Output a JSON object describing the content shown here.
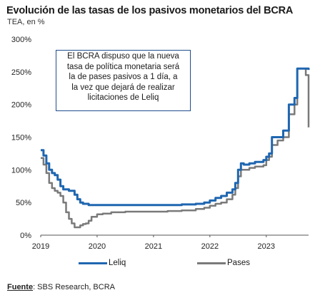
{
  "header": {
    "title": "Evolución de las tasas de los pasivos monetarios del BCRA",
    "subtitle": "TEA, en %"
  },
  "annotation": {
    "lines": [
      "El BCRA dispuso que la nueva",
      "tasa de política monetaria será",
      "la de pases pasivos a 1 día, a",
      "la vez que dejará de realizar",
      "licitaciones de Leliq"
    ]
  },
  "legend": {
    "leliq": "Leliq",
    "pases": "Pases"
  },
  "source": {
    "label": "Fuente",
    "text": ": SBS Research, BCRA"
  },
  "colors": {
    "leliq": "#1f66b0",
    "pases": "#7a7a7a",
    "axis": "#555555"
  },
  "chart_data": {
    "type": "line",
    "title": "Evolución de las tasas de los pasivos monetarios del BCRA",
    "ylabel": "TEA, en %",
    "xlabel": "",
    "xlim": [
      2019,
      2023.75
    ],
    "ylim": [
      0,
      300
    ],
    "y_ticks": [
      "0%",
      "50%",
      "100%",
      "150%",
      "200%",
      "250%",
      "300%"
    ],
    "x_ticks": [
      "2019",
      "2020",
      "2021",
      "2022",
      "2023"
    ],
    "grid": false,
    "legend_position": "bottom",
    "series": [
      {
        "name": "Leliq",
        "x": [
          2019.0,
          2019.05,
          2019.1,
          2019.15,
          2019.2,
          2019.25,
          2019.3,
          2019.35,
          2019.4,
          2019.5,
          2019.6,
          2019.65,
          2019.7,
          2019.75,
          2019.85,
          2020.0,
          2020.25,
          2020.5,
          2020.75,
          2021.0,
          2021.25,
          2021.5,
          2021.75,
          2021.9,
          2022.0,
          2022.1,
          2022.2,
          2022.3,
          2022.4,
          2022.45,
          2022.5,
          2022.55,
          2022.6,
          2022.7,
          2022.8,
          2022.95,
          2023.0,
          2023.05,
          2023.1,
          2023.2,
          2023.3,
          2023.4,
          2023.5,
          2023.55,
          2023.6,
          2023.65,
          2023.7,
          2023.75
        ],
        "y": [
          130,
          122,
          110,
          100,
          95,
          92,
          85,
          75,
          70,
          68,
          62,
          55,
          50,
          48,
          46,
          46,
          46,
          46,
          46,
          46,
          46,
          47,
          48,
          50,
          53,
          57,
          60,
          65,
          70,
          80,
          100,
          110,
          108,
          110,
          112,
          115,
          120,
          125,
          150,
          150,
          160,
          200,
          210,
          255,
          255,
          255,
          255,
          253
        ]
      },
      {
        "name": "Pases",
        "x": [
          2019.0,
          2019.05,
          2019.1,
          2019.15,
          2019.2,
          2019.25,
          2019.3,
          2019.35,
          2019.4,
          2019.45,
          2019.5,
          2019.55,
          2019.6,
          2019.65,
          2019.7,
          2019.75,
          2019.8,
          2019.85,
          2019.9,
          2020.0,
          2020.1,
          2020.25,
          2020.5,
          2020.75,
          2021.0,
          2021.25,
          2021.5,
          2021.75,
          2021.9,
          2022.0,
          2022.1,
          2022.2,
          2022.3,
          2022.4,
          2022.45,
          2022.5,
          2022.55,
          2022.6,
          2022.7,
          2022.8,
          2022.95,
          2023.0,
          2023.05,
          2023.1,
          2023.2,
          2023.3,
          2023.4,
          2023.5,
          2023.55,
          2023.6,
          2023.65,
          2023.7,
          2023.75
        ],
        "y": [
          118,
          108,
          95,
          80,
          72,
          68,
          65,
          60,
          50,
          35,
          25,
          18,
          12,
          12,
          15,
          17,
          18,
          22,
          28,
          32,
          33,
          35,
          36,
          36,
          36,
          37,
          38,
          40,
          42,
          45,
          48,
          50,
          55,
          62,
          72,
          90,
          100,
          100,
          103,
          105,
          107,
          115,
          120,
          138,
          145,
          150,
          185,
          200,
          255,
          255,
          255,
          245,
          165
        ]
      }
    ]
  }
}
